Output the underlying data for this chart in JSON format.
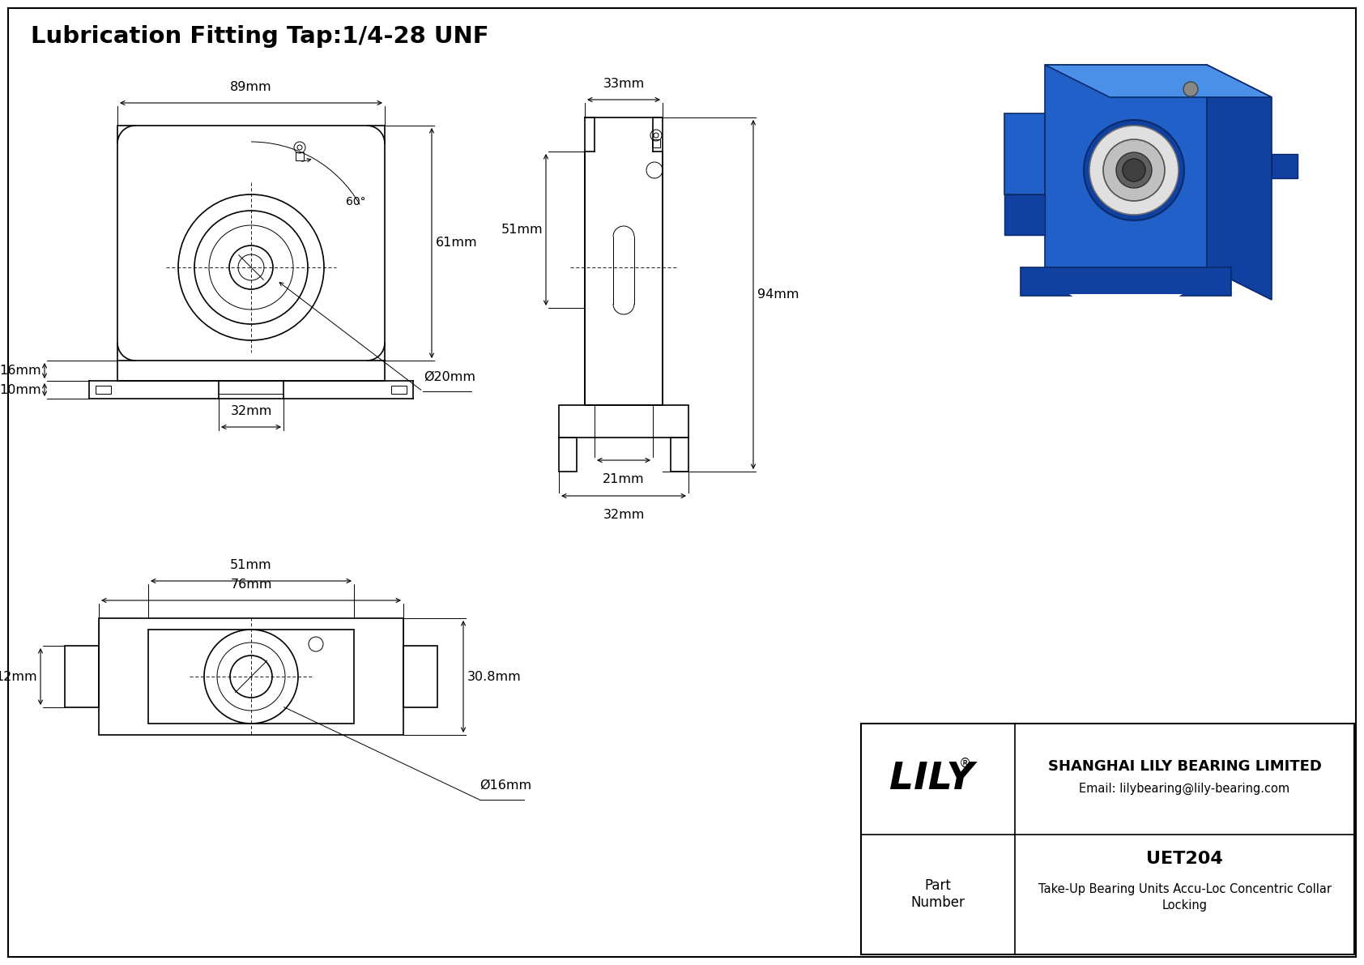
{
  "title": "Lubrication Fitting Tap:1/4-28 UNF",
  "background_color": "#ffffff",
  "line_color": "#000000",
  "company_name": "SHANGHAI LILY BEARING LIMITED",
  "company_email": "Email: lilybearing@lily-bearing.com",
  "part_number": "UET204",
  "part_desc1": "Take-Up Bearing Units Accu-Loc Concentric Collar",
  "part_desc2": "Locking",
  "dim_89": "89mm",
  "dim_61": "61mm",
  "dim_16": "16mm",
  "dim_10": "10mm",
  "dim_32_front": "32mm",
  "dim_20": "Ø20mm",
  "dim_60": "60°",
  "dim_76": "76mm",
  "dim_51_bottom": "51mm",
  "dim_30_8": "30.8mm",
  "dim_12": "12mm",
  "dim_16_bottom": "Ø16mm",
  "dim_33": "33mm",
  "dim_51_side": "51mm",
  "dim_94": "94mm",
  "dim_21": "21mm",
  "dim_32_side": "32mm"
}
